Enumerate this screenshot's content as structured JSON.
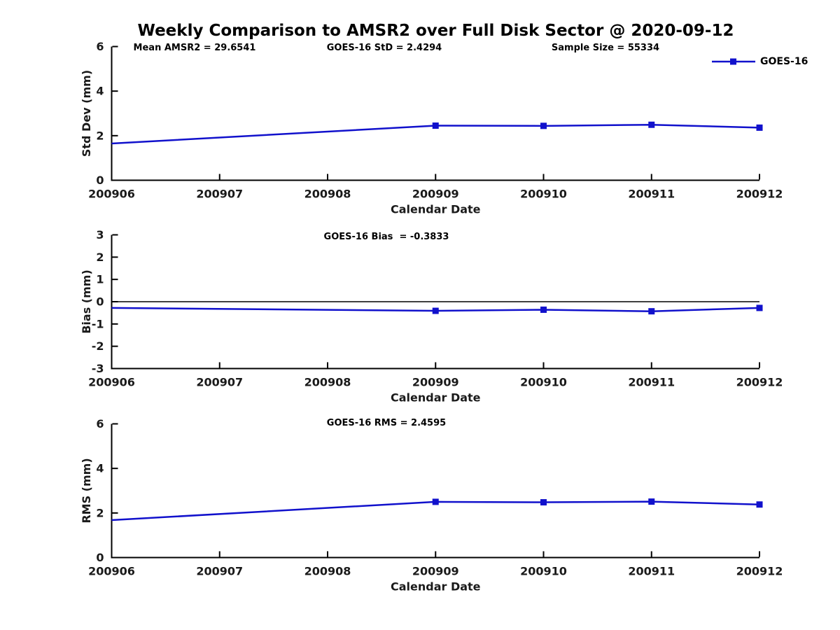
{
  "title": "Weekly Comparison to AMSR2 over Full Disk Sector @ 2020-09-12",
  "legend": {
    "label": "GOES-16",
    "color": "#1111CC"
  },
  "colors": {
    "series": "#1111CC",
    "axis": "#000000",
    "zero_line": "#000000"
  },
  "chart_data": [
    {
      "type": "line",
      "subplot": "std-dev",
      "ylabel": "Std Dev (mm)",
      "xlabel": "Calendar Date",
      "ylim": [
        0,
        6
      ],
      "yticks": [
        0,
        2,
        4,
        6
      ],
      "xlim": [
        200906,
        200912
      ],
      "xticks": [
        200906,
        200907,
        200908,
        200909,
        200910,
        200911,
        200912
      ],
      "zero_line": false,
      "grid": false,
      "legend_position": "top-right",
      "annotations": [
        {
          "text": "Mean AMSR2 = 29.6541"
        },
        {
          "text": "GOES-16 StD = 2.4294"
        },
        {
          "text": "Sample Size = 55334"
        }
      ],
      "series": [
        {
          "name": "GOES-16",
          "color": "#1111CC",
          "x": [
            200906,
            200909,
            200910,
            200911,
            200912
          ],
          "y": [
            1.65,
            2.45,
            2.44,
            2.49,
            2.36
          ],
          "markers": [
            false,
            true,
            true,
            true,
            true
          ],
          "marker_shape": "square"
        }
      ]
    },
    {
      "type": "line",
      "subplot": "bias",
      "ylabel": "Bias (mm)",
      "xlabel": "Calendar Date",
      "ylim": [
        -3,
        3
      ],
      "yticks": [
        -3,
        -2,
        -1,
        0,
        1,
        2,
        3
      ],
      "xlim": [
        200906,
        200912
      ],
      "xticks": [
        200906,
        200907,
        200908,
        200909,
        200910,
        200911,
        200912
      ],
      "zero_line": true,
      "grid": false,
      "annotations": [
        {
          "text": "GOES-16 Bias  = -0.3833"
        }
      ],
      "series": [
        {
          "name": "GOES-16",
          "color": "#1111CC",
          "x": [
            200906,
            200909,
            200910,
            200911,
            200912
          ],
          "y": [
            -0.28,
            -0.41,
            -0.36,
            -0.43,
            -0.28
          ],
          "markers": [
            false,
            true,
            true,
            true,
            true
          ],
          "marker_shape": "square"
        }
      ]
    },
    {
      "type": "line",
      "subplot": "rms",
      "ylabel": "RMS (mm)",
      "xlabel": "Calendar Date",
      "ylim": [
        0,
        6
      ],
      "yticks": [
        0,
        2,
        4,
        6
      ],
      "xlim": [
        200906,
        200912
      ],
      "xticks": [
        200906,
        200907,
        200908,
        200909,
        200910,
        200911,
        200912
      ],
      "zero_line": false,
      "grid": false,
      "annotations": [
        {
          "text": "GOES-16 RMS = 2.4595"
        }
      ],
      "series": [
        {
          "name": "GOES-16",
          "color": "#1111CC",
          "x": [
            200906,
            200909,
            200910,
            200911,
            200912
          ],
          "y": [
            1.68,
            2.5,
            2.48,
            2.51,
            2.38
          ],
          "markers": [
            false,
            true,
            true,
            true,
            true
          ],
          "marker_shape": "square"
        }
      ]
    }
  ]
}
